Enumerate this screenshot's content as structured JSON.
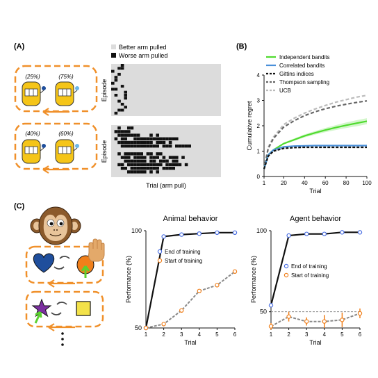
{
  "panel_labels": {
    "a": "(A)",
    "b": "(B)",
    "c": "(C)"
  },
  "panel_a": {
    "slots_top": [
      "(25%)",
      "(75%)"
    ],
    "slots_bottom": [
      "(40%)",
      "(60%)"
    ],
    "legend": {
      "better": "Better arm pulled",
      "worse": "Worse arm pulled"
    },
    "ylabel": "Episode",
    "xlabel": "Trial (arm pull)",
    "colors": {
      "better": "#dcdcdc",
      "worse": "#111111",
      "dash": "#f0902a",
      "machine": "#f5c518"
    }
  },
  "panel_c": {
    "symbols": [
      "heart",
      "circle",
      "star",
      "square"
    ],
    "ellipsis": "⋮",
    "colors": {
      "heart": "#1f4e9c",
      "circle": "#f07f1a",
      "star": "#7b2fa0",
      "square": "#f3e24a",
      "arrow": "#5bd12f"
    }
  },
  "chart_data": [
    {
      "id": "B",
      "type": "line",
      "xlabel": "Trial",
      "ylabel": "Cumulative regret",
      "xlim": [
        1,
        100
      ],
      "ylim": [
        0,
        4
      ],
      "xticks": [
        1,
        20,
        40,
        60,
        80,
        100
      ],
      "yticks": [
        0,
        1,
        2,
        3,
        4
      ],
      "x": [
        1,
        5,
        10,
        20,
        30,
        40,
        50,
        60,
        70,
        80,
        90,
        100
      ],
      "series": [
        {
          "name": "Independent bandits",
          "color": "#4fdb2e",
          "dash": "",
          "values": [
            0.3,
            0.85,
            1.05,
            1.3,
            1.45,
            1.6,
            1.72,
            1.83,
            1.93,
            2.02,
            2.1,
            2.18
          ]
        },
        {
          "name": "Correlated bandits",
          "color": "#4a90d9",
          "dash": "",
          "values": [
            0.3,
            0.85,
            1.05,
            1.17,
            1.2,
            1.21,
            1.22,
            1.22,
            1.22,
            1.22,
            1.22,
            1.22
          ]
        },
        {
          "name": "Gittins indices",
          "color": "#111111",
          "dash": "4,2",
          "values": [
            0.3,
            0.8,
            1.0,
            1.11,
            1.14,
            1.15,
            1.15,
            1.15,
            1.15,
            1.15,
            1.15,
            1.15
          ]
        },
        {
          "name": "Thompson sampling",
          "color": "#666666",
          "dash": "5,3",
          "values": [
            0.3,
            1.1,
            1.5,
            1.95,
            2.2,
            2.4,
            2.55,
            2.67,
            2.77,
            2.85,
            2.92,
            2.98
          ]
        },
        {
          "name": "UCB",
          "color": "#bbbbbb",
          "dash": "5,3",
          "values": [
            0.3,
            1.15,
            1.55,
            2.05,
            2.3,
            2.5,
            2.66,
            2.8,
            2.93,
            3.03,
            3.13,
            3.2
          ]
        }
      ]
    },
    {
      "id": "C-animal",
      "type": "line",
      "title": "Animal behavior",
      "xlabel": "Trial",
      "ylabel": "Performance (%)",
      "xlim": [
        1,
        6
      ],
      "ylim": [
        50,
        100
      ],
      "xticks": [
        1,
        2,
        3,
        4,
        5,
        6
      ],
      "yticks": [
        50,
        100
      ],
      "x": [
        1,
        2,
        3,
        4,
        5,
        6
      ],
      "series": [
        {
          "name": "End of training",
          "color": "#4a6fe3",
          "line": "#111111",
          "values": [
            50,
            97,
            98,
            98.5,
            99,
            99
          ]
        },
        {
          "name": "Start of training",
          "color": "#f07f1a",
          "line": "#888888",
          "values": [
            50,
            52,
            59,
            69,
            72,
            79
          ]
        }
      ]
    },
    {
      "id": "C-agent",
      "type": "line",
      "title": "Agent behavior",
      "xlabel": "Trial",
      "ylabel": "Performance (%)",
      "xlim": [
        1,
        6
      ],
      "ylim": [
        40,
        100
      ],
      "xticks": [
        1,
        2,
        3,
        4,
        5,
        6
      ],
      "yticks": [
        50,
        100
      ],
      "reference_line": 50,
      "x": [
        1,
        2,
        3,
        4,
        5,
        6
      ],
      "series": [
        {
          "name": "End of training",
          "color": "#4a6fe3",
          "line": "#111111",
          "values": [
            54,
            97,
            98,
            98,
            99,
            99
          ],
          "errors": [
            1,
            0.5,
            0.5,
            0.5,
            0.5,
            0.5
          ]
        },
        {
          "name": "Start of training",
          "color": "#f07f1a",
          "line": "#888888",
          "values": [
            41,
            47,
            44,
            44,
            45,
            49
          ],
          "errors": [
            2,
            3,
            2.5,
            4,
            4.5,
            3
          ]
        }
      ]
    }
  ]
}
